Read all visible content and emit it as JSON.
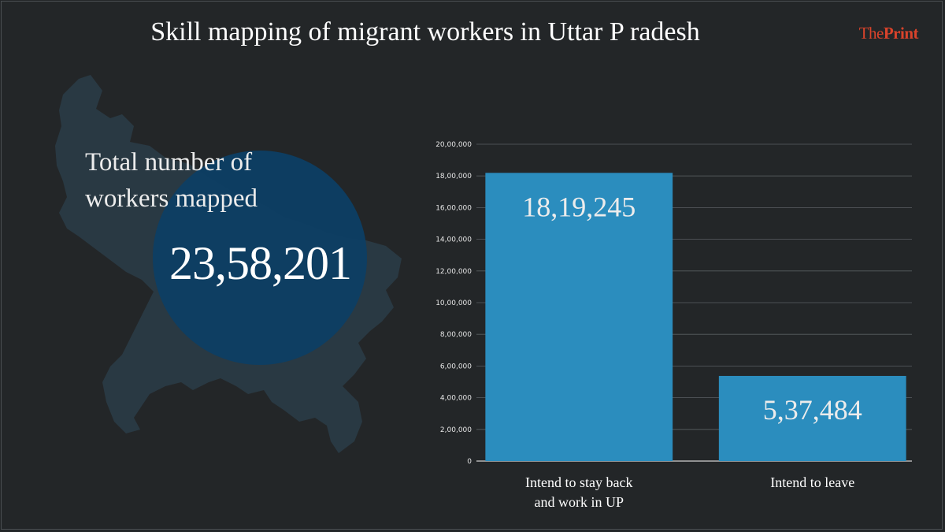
{
  "title": "Skill mapping of migrant workers in Uttar P radesh",
  "brand": {
    "prefix": "The",
    "suffix": "Print",
    "accent": "#d9432b"
  },
  "total": {
    "label_line1": "Total number of",
    "label_line2": "workers mapped",
    "value": "23,58,201"
  },
  "colors": {
    "background": "#232628",
    "bar": "#2b8dbe",
    "circle": "#0d3e64",
    "map": "#2a3a45"
  },
  "chart_data": {
    "type": "bar",
    "categories": [
      [
        "Intend to stay back",
        "and work in UP"
      ],
      [
        "Intend to leave"
      ]
    ],
    "values": [
      1819245,
      537484
    ],
    "data_labels": [
      "18,19,245",
      "5,37,484"
    ],
    "ylim": [
      0,
      2000000
    ],
    "y_ticks": [
      0,
      200000,
      400000,
      600000,
      800000,
      1000000,
      1200000,
      1400000,
      1600000,
      1800000,
      2000000
    ],
    "y_tick_labels": [
      "0",
      "2,00,000",
      "4,00,000",
      "6,00,000",
      "8,00,000",
      "10,00,000",
      "12,00,000",
      "14,00,000",
      "16,00,000",
      "18,00,000",
      "20,00,000"
    ],
    "grid": true
  }
}
